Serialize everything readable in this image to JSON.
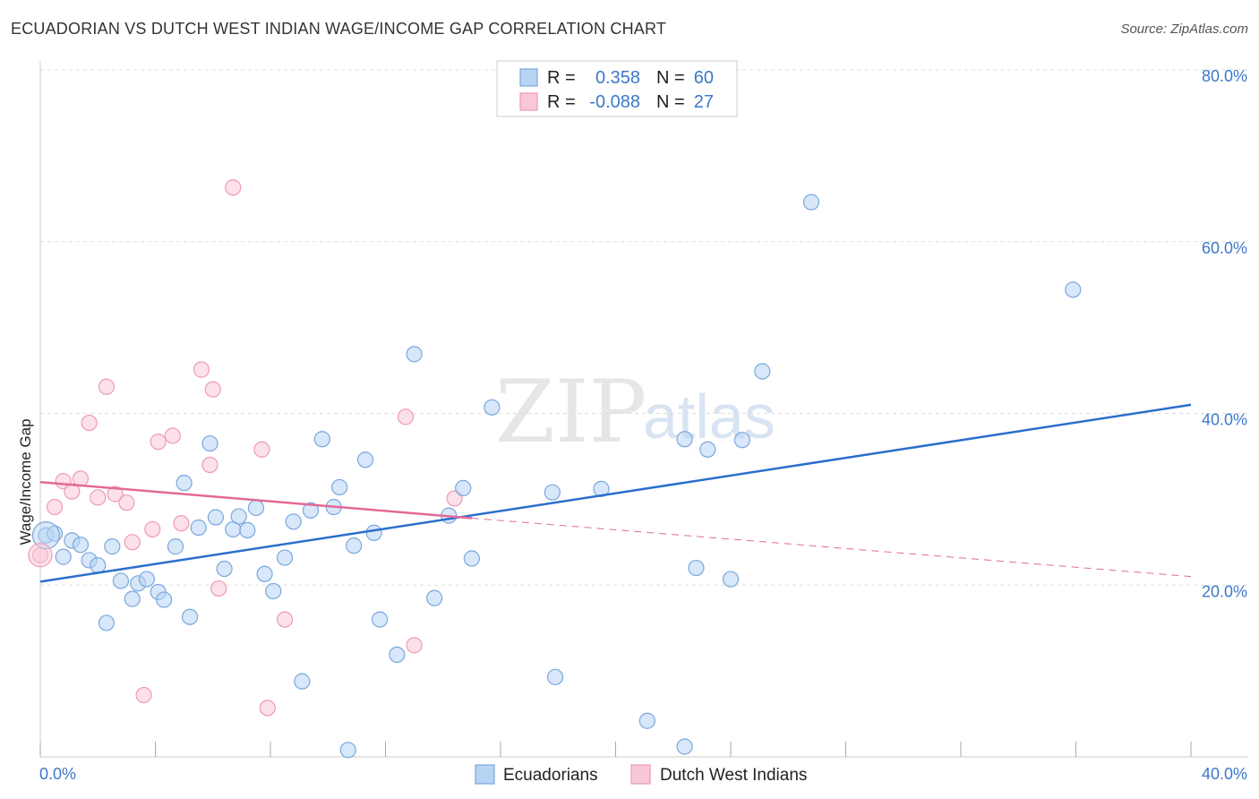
{
  "title": "ECUADORIAN VS DUTCH WEST INDIAN WAGE/INCOME GAP CORRELATION CHART",
  "source": "Source: ZipAtlas.com",
  "watermark": {
    "zip": "ZIP",
    "atlas": "atlas"
  },
  "legend": {
    "series1": {
      "r_label": "R =",
      "r_value": "0.358",
      "n_label": "N =",
      "n_value": "60"
    },
    "series2": {
      "r_label": "R =",
      "r_value": "-0.088",
      "n_label": "N =",
      "n_value": "27"
    }
  },
  "bottom_legend": {
    "series1": "Ecuadorians",
    "series2": "Dutch West Indians"
  },
  "colors": {
    "blue_fill": "#b8d4f4",
    "blue_stroke": "#7aa8dc",
    "blue_line": "#2a6fcc",
    "pink_fill": "#f9c8d8",
    "pink_stroke": "#ee9ab4",
    "pink_line": "#e26a96",
    "grid": "#dddddd",
    "tick_text": "#3c78c8"
  },
  "chart_data": {
    "type": "scatter",
    "title": "ECUADORIAN VS DUTCH WEST INDIAN WAGE/INCOME GAP CORRELATION CHART",
    "xlabel": "",
    "ylabel": "Wage/Income Gap",
    "xlim": [
      0,
      40
    ],
    "ylim": [
      0,
      80
    ],
    "x_tick_labels": {
      "left": "0.0%",
      "right": "40.0%"
    },
    "y_ticks": [
      {
        "value": 20,
        "label": "20.0%"
      },
      {
        "value": 40,
        "label": "40.0%"
      },
      {
        "value": 60,
        "label": "60.0%"
      },
      {
        "value": 80,
        "label": "80.0%"
      }
    ],
    "series": [
      {
        "name": "Ecuadorians",
        "color": "#b8d4f4",
        "points": [
          [
            0.2,
            25.8
          ],
          [
            0.5,
            26.0
          ],
          [
            0.8,
            23.3
          ],
          [
            1.1,
            25.2
          ],
          [
            1.4,
            24.7
          ],
          [
            1.7,
            22.9
          ],
          [
            2.0,
            22.3
          ],
          [
            2.3,
            15.6
          ],
          [
            2.5,
            24.5
          ],
          [
            2.8,
            20.5
          ],
          [
            3.2,
            18.4
          ],
          [
            3.4,
            20.2
          ],
          [
            3.7,
            20.7
          ],
          [
            4.1,
            19.2
          ],
          [
            4.3,
            18.3
          ],
          [
            4.7,
            24.5
          ],
          [
            5.0,
            31.9
          ],
          [
            5.2,
            16.3
          ],
          [
            5.5,
            26.7
          ],
          [
            5.9,
            36.5
          ],
          [
            6.1,
            27.9
          ],
          [
            6.4,
            21.9
          ],
          [
            6.7,
            26.5
          ],
          [
            6.9,
            28.0
          ],
          [
            7.2,
            26.4
          ],
          [
            7.5,
            29.0
          ],
          [
            7.8,
            21.3
          ],
          [
            8.1,
            19.3
          ],
          [
            8.5,
            23.2
          ],
          [
            8.8,
            27.4
          ],
          [
            9.1,
            8.8
          ],
          [
            9.4,
            28.7
          ],
          [
            9.8,
            37.0
          ],
          [
            10.2,
            29.1
          ],
          [
            10.4,
            31.4
          ],
          [
            10.7,
            0.8
          ],
          [
            10.9,
            24.6
          ],
          [
            11.3,
            34.6
          ],
          [
            11.6,
            26.1
          ],
          [
            11.8,
            16.0
          ],
          [
            12.4,
            11.9
          ],
          [
            13.0,
            46.9
          ],
          [
            13.7,
            18.5
          ],
          [
            14.2,
            28.1
          ],
          [
            14.7,
            31.3
          ],
          [
            15.0,
            23.1
          ],
          [
            15.7,
            40.7
          ],
          [
            17.8,
            30.8
          ],
          [
            17.9,
            9.3
          ],
          [
            19.5,
            31.2
          ],
          [
            21.1,
            4.2
          ],
          [
            22.4,
            1.2
          ],
          [
            22.4,
            37.0
          ],
          [
            22.8,
            22.0
          ],
          [
            23.2,
            35.8
          ],
          [
            24.0,
            20.7
          ],
          [
            24.4,
            36.9
          ],
          [
            25.1,
            44.9
          ],
          [
            26.8,
            64.6
          ],
          [
            35.9,
            54.4
          ]
        ]
      },
      {
        "name": "Dutch West Indians",
        "color": "#f9c8d8",
        "points": [
          [
            0.0,
            23.5
          ],
          [
            0.5,
            29.1
          ],
          [
            0.8,
            32.1
          ],
          [
            1.1,
            30.9
          ],
          [
            1.4,
            32.4
          ],
          [
            1.7,
            38.9
          ],
          [
            2.0,
            30.2
          ],
          [
            2.3,
            43.1
          ],
          [
            2.6,
            30.6
          ],
          [
            3.0,
            29.6
          ],
          [
            3.2,
            25.0
          ],
          [
            3.6,
            7.2
          ],
          [
            3.9,
            26.5
          ],
          [
            4.1,
            36.7
          ],
          [
            4.6,
            37.4
          ],
          [
            4.9,
            27.2
          ],
          [
            5.6,
            45.1
          ],
          [
            5.9,
            34.0
          ],
          [
            6.0,
            42.8
          ],
          [
            6.2,
            19.6
          ],
          [
            6.7,
            66.3
          ],
          [
            7.7,
            35.8
          ],
          [
            7.9,
            5.7
          ],
          [
            8.5,
            16.0
          ],
          [
            12.7,
            39.6
          ],
          [
            13.0,
            13.0
          ],
          [
            14.4,
            30.1
          ]
        ]
      }
    ],
    "trend_lines": [
      {
        "series": "Ecuadorians",
        "from": [
          0,
          20.4
        ],
        "to": [
          40,
          41.0
        ],
        "style": "solid"
      },
      {
        "series": "Dutch West Indians",
        "from": [
          0,
          32.0
        ],
        "to": [
          15,
          27.8
        ],
        "style": "solid"
      },
      {
        "series": "Dutch West Indians",
        "from": [
          15,
          27.8
        ],
        "to": [
          40,
          21.0
        ],
        "style": "dashed"
      }
    ]
  }
}
